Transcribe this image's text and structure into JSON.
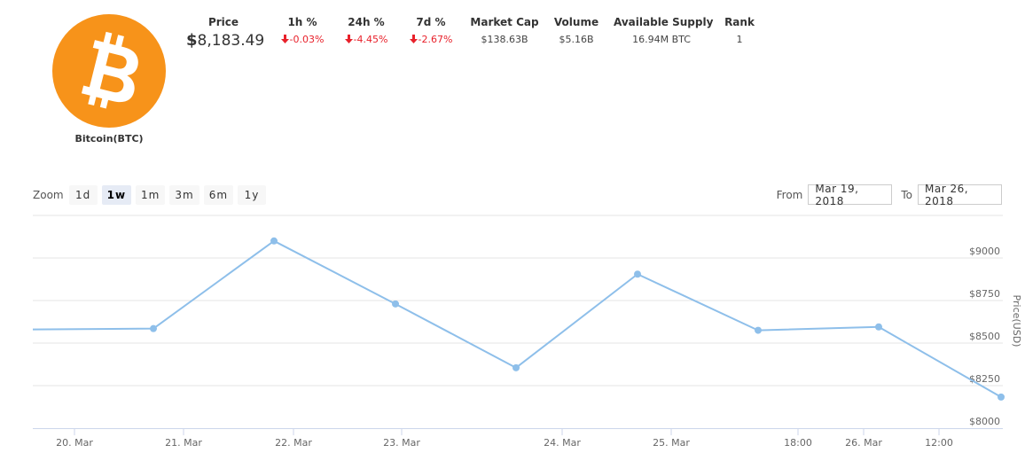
{
  "coin": {
    "name": "Bitcoin(BTC)",
    "logo_icon": "bitcoin-logo-icon",
    "logo_color": "#f7931a"
  },
  "stats": [
    {
      "key": "price",
      "label": "Price",
      "currency_symbol": "$",
      "value": "8,183.49"
    },
    {
      "key": "change_1h",
      "label": "1h %",
      "value": "-0.03%",
      "direction": "down",
      "icon": "arrow-down-icon",
      "color": "#e8212b"
    },
    {
      "key": "change_24h",
      "label": "24h %",
      "value": "-4.45%",
      "direction": "down",
      "icon": "arrow-down-icon",
      "color": "#e8212b"
    },
    {
      "key": "change_7d",
      "label": "7d %",
      "value": "-2.67%",
      "direction": "down",
      "icon": "arrow-down-icon",
      "color": "#e8212b"
    },
    {
      "key": "market_cap",
      "label": "Market Cap",
      "value": "$138.63B"
    },
    {
      "key": "volume",
      "label": "Volume",
      "value": "$5.16B"
    },
    {
      "key": "supply",
      "label": "Available Supply",
      "value": "16.94M BTC"
    },
    {
      "key": "rank",
      "label": "Rank",
      "value": "1"
    }
  ],
  "zoom": {
    "label": "Zoom",
    "buttons": [
      "1d",
      "1w",
      "1m",
      "3m",
      "6m",
      "1y"
    ],
    "active": "1w"
  },
  "range": {
    "from_label": "From",
    "from_value": "Mar 19, 2018",
    "to_label": "To",
    "to_value": "Mar 26, 2018"
  },
  "chart_data": {
    "type": "line",
    "title": "",
    "xlabel": "",
    "ylabel": "Price(USD)",
    "series": [
      {
        "name": "Price(USD)",
        "color": "#8ebfea",
        "x": [
          "20 Mar 00:00 (edge)",
          "20 Mar 18:00",
          "21 Mar 12:00",
          "22 Mar 06:00",
          "23 Mar 00:00",
          "23 Mar 18:00",
          "24 Mar 12:00",
          "25 Mar 06:00",
          "26 Mar 00:00"
        ],
        "values": [
          8580,
          8585,
          9100,
          8730,
          8355,
          8905,
          8575,
          8595,
          8183
        ]
      }
    ],
    "x_tick_labels": [
      "20. Mar",
      "21. Mar",
      "22. Mar",
      "23. Mar",
      "24. Mar",
      "25. Mar",
      "18:00",
      "26. Mar",
      "12:00"
    ],
    "y_tick_labels": [
      "$8000",
      "$8250",
      "$8500",
      "$8750",
      "$9000"
    ],
    "ylim": [
      8000,
      9250
    ],
    "grid": true,
    "y_axis_position": "right",
    "legend": "none"
  }
}
